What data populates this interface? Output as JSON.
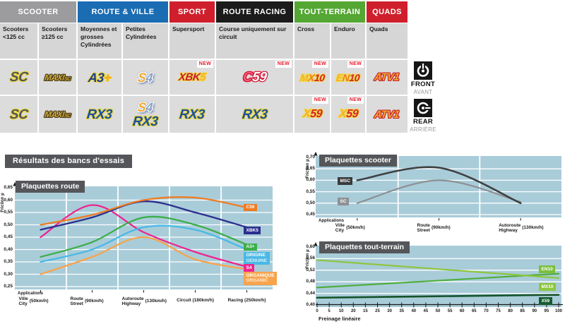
{
  "section_title": "Résultats des bancs d'essais",
  "colors": {
    "banner_bg": "#55565a",
    "plot_bg": "#a9ccd9",
    "grid": "#ffffff",
    "cell_bg": "#dcdcdc",
    "subheader_bg": "#d6d6d6",
    "new_text": "#e8192c",
    "axis": "#1a1a1a"
  },
  "matrix": {
    "new_label": "NEW",
    "header_groups": [
      {
        "label": "SCOOTER",
        "color": "#9c9c9e",
        "cols": [
          0,
          1
        ]
      },
      {
        "label": "ROUTE & VILLE",
        "color": "#1a6cb3",
        "cols": [
          2,
          3
        ]
      },
      {
        "label": "SPORT",
        "color": "#cf1f2c",
        "cols": [
          4
        ]
      },
      {
        "label": "ROUTE RACING",
        "color": "#1b1b1b",
        "cols": [
          5
        ]
      },
      {
        "label": "TOUT-TERRAIN",
        "color": "#54a733",
        "cols": [
          6,
          7
        ]
      },
      {
        "label": "QUADS",
        "color": "#cf1f2c",
        "cols": [
          8
        ]
      }
    ],
    "subheaders": [
      "Scooters <125 cc",
      "Scooters ≥125 cc",
      "Moyennes et grosses Cylindrées",
      "Petites Cylindrées",
      "Supersport",
      "Course uniquement sur circuit",
      "Cross",
      "Enduro",
      "Quads"
    ],
    "rows": [
      {
        "side": "front",
        "cells": [
          {
            "logos": [
              "SC"
            ]
          },
          {
            "logos": [
              "MAXI-SC"
            ]
          },
          {
            "logos": [
              "A3+"
            ]
          },
          {
            "logos": [
              "S4"
            ]
          },
          {
            "logos": [
              "XBK5"
            ],
            "new": true
          },
          {
            "logos": [
              "C59"
            ],
            "new": true
          },
          {
            "logos": [
              "MX10"
            ],
            "new": true
          },
          {
            "logos": [
              "EN10"
            ],
            "new": true
          },
          {
            "logos": [
              "ATV1"
            ]
          }
        ]
      },
      {
        "side": "rear",
        "cells": [
          {
            "logos": [
              "SC"
            ]
          },
          {
            "logos": [
              "MAXI-SC"
            ]
          },
          {
            "logos": [
              "RX3"
            ]
          },
          {
            "logos": [
              "S4",
              "RX3"
            ]
          },
          {
            "logos": [
              "RX3"
            ]
          },
          {
            "logos": [
              "RX3"
            ]
          },
          {
            "logos": [
              "X59"
            ],
            "new": true
          },
          {
            "logos": [
              "X59"
            ],
            "new": true
          },
          {
            "logos": [
              "ATV1"
            ]
          }
        ]
      }
    ],
    "position_labels": [
      {
        "en": "FRONT",
        "fr": "AVANT"
      },
      {
        "en": "REAR",
        "fr": "ARRIÈRE"
      }
    ]
  },
  "logo_styles": {
    "SC": {
      "size": 19,
      "outline": "#ead73a",
      "parts": [
        {
          "t": "SC",
          "c": "#54555a"
        }
      ]
    },
    "MAXI-SC": {
      "size": 12,
      "outline": "#453a14",
      "parts": [
        {
          "t": "MAXI",
          "c": "#d2a93c"
        },
        {
          "t": "SC",
          "c": "#d2a93c",
          "small": true
        }
      ]
    },
    "A3+": {
      "size": 18,
      "outline": "#ead73a",
      "parts": [
        {
          "t": "A3",
          "c": "#1e3c94"
        },
        {
          "t": "+",
          "c": "#f2a62c"
        }
      ]
    },
    "S4": {
      "size": 18,
      "outline": "#ffffff",
      "glow": "#4a6fa5",
      "parts": [
        {
          "t": "S",
          "c": "#f2a62c"
        },
        {
          "t": "4",
          "c": "#8aa2c0"
        }
      ]
    },
    "XBK5": {
      "size": 15,
      "outline": "#f5d84a",
      "parts": [
        {
          "t": "XBK",
          "c": "#c3202c"
        },
        {
          "t": "5",
          "c": "#f2b32e"
        }
      ]
    },
    "C59": {
      "size": 19,
      "outline": "#d20f2f",
      "parts": [
        {
          "t": "C",
          "c": "#f05a75"
        },
        {
          "t": "59",
          "c": "#ffffff"
        }
      ]
    },
    "MX10": {
      "size": 14,
      "outline": "#f5d84a",
      "parts": [
        {
          "t": "M",
          "c": "#f2b32e"
        },
        {
          "t": "X",
          "c": "#ee7d23"
        },
        {
          "t": "10",
          "c": "#d2232a"
        }
      ]
    },
    "EN10": {
      "size": 14,
      "outline": "#f5d84a",
      "parts": [
        {
          "t": "E",
          "c": "#f2b32e"
        },
        {
          "t": "N",
          "c": "#ee7d23"
        },
        {
          "t": "10",
          "c": "#d2232a"
        }
      ]
    },
    "ATV1": {
      "size": 15,
      "outline": "#c3202c",
      "parts": [
        {
          "t": "ATV1",
          "c": "#f2a62c"
        }
      ]
    },
    "RX3": {
      "size": 19,
      "outline": "#ead73a",
      "parts": [
        {
          "t": "RX3",
          "c": "#1d4fa1"
        }
      ]
    },
    "X59": {
      "size": 16,
      "outline": "#f5d84a",
      "parts": [
        {
          "t": "X",
          "c": "#f2b32e"
        },
        {
          "t": "59",
          "c": "#d2232a"
        }
      ]
    }
  },
  "chart_data": [
    {
      "id": "route",
      "type": "line",
      "title": "Plaquettes route",
      "ylabel": "Friction µ",
      "applications_label": "Applications",
      "ylim": [
        0.25,
        0.65
      ],
      "yticks": [
        "0,65",
        "0,60",
        "0,55",
        "0,50",
        "0,45",
        "0,40",
        "0,35",
        "0,30",
        "0,25"
      ],
      "categories": [
        {
          "fr": "Ville",
          "en": "City",
          "speed": "(50km/h)"
        },
        {
          "fr": "Route",
          "en": "Street",
          "speed": "(90km/h)"
        },
        {
          "fr": "Autoroute",
          "en": "Highway",
          "speed": "(130km/h)"
        },
        {
          "fr": "Circuit (180km/h)"
        },
        {
          "fr": "Racing (250km/h)"
        }
      ],
      "series": [
        {
          "name": "C59",
          "color": "#ee7c22",
          "badge_bg": "#ee7c22",
          "badge_lines": [
            "C59"
          ],
          "values": [
            0.5,
            0.54,
            0.6,
            0.61,
            0.57
          ],
          "badge_y": 0.571
        },
        {
          "name": "XBK5",
          "color": "#2b2f8e",
          "badge_bg": "#2b2f8e",
          "badge_lines": [
            "XBK5"
          ],
          "values": [
            0.48,
            0.53,
            0.595,
            0.55,
            0.49
          ],
          "badge_y": 0.478
        },
        {
          "name": "A3+",
          "color": "#3dae49",
          "badge_bg": "#3dae49",
          "badge_lines": [
            "A3+"
          ],
          "values": [
            0.37,
            0.43,
            0.53,
            0.5,
            0.42
          ],
          "badge_y": 0.411
        },
        {
          "name": "ORIGINE GENUINE",
          "color": "#49b9e6",
          "badge_bg": "#49b9e6",
          "badge_lines": [
            "ORIGINE",
            "GENUINE"
          ],
          "values": [
            0.35,
            0.4,
            0.49,
            0.48,
            0.4
          ],
          "badge_y": 0.37
        },
        {
          "name": "S4",
          "color": "#ec268f",
          "badge_bg": "#ec268f",
          "badge_lines": [
            "S4"
          ],
          "values": [
            0.45,
            0.58,
            0.47,
            0.39,
            0.33
          ],
          "badge_y": 0.327
        },
        {
          "name": "ORGANIQUE ORGANIC",
          "color": "#f7a44c",
          "badge_bg": "#f7a44c",
          "badge_lines": [
            "ORGANIQUE",
            "ORGANIC"
          ],
          "values": [
            0.3,
            0.37,
            0.45,
            0.36,
            0.32
          ],
          "badge_y": 0.288
        }
      ]
    },
    {
      "id": "scooter",
      "type": "line",
      "title": "Plaquettes scooter",
      "ylabel": "Friction µ",
      "applications_label": "Applications",
      "ylim": [
        0.45,
        0.7
      ],
      "yticks": [
        "0,70",
        "0,65",
        "0,60",
        "0,55",
        "0,50",
        "0,45"
      ],
      "categories": [
        {
          "fr": "Ville",
          "en": "City",
          "speed": "(50km/h)"
        },
        {
          "fr": "Route",
          "en": "Street",
          "speed": "(90km/h)"
        },
        {
          "fr": "Autoroute",
          "en": "Highway",
          "speed": "(130km/h)"
        }
      ],
      "series": [
        {
          "name": "MSC",
          "color": "#3e4042",
          "badge_bg": "#3a3b3d",
          "badge_lines": [
            "MSC"
          ],
          "values": [
            0.6,
            0.655,
            0.5
          ],
          "badge_y": 0.597,
          "width": 2.6
        },
        {
          "name": "SC",
          "color": "#8d9194",
          "badge_bg": "#8d9194",
          "badge_lines": [
            "SC"
          ],
          "values": [
            0.5,
            0.6,
            0.505
          ],
          "badge_y": 0.508,
          "width": 2.2
        }
      ]
    },
    {
      "id": "terrain",
      "type": "line",
      "title": "Plaquettes tout-terrain",
      "ylabel": "Friction µ",
      "xlabel": "Freinage linéaire",
      "ylim": [
        0.4,
        0.6
      ],
      "xlim": [
        0,
        100
      ],
      "yticks": [
        "0,60",
        "0,56",
        "0,52",
        "0,48",
        "0,44",
        "0,40"
      ],
      "xticks": [
        "0",
        "5",
        "10",
        "20",
        "15",
        "25",
        "30",
        "35",
        "40",
        "45",
        "50",
        "55",
        "60",
        "65",
        "70",
        "75",
        "80",
        "85",
        "90",
        "95",
        "100"
      ],
      "series": [
        {
          "name": "EN10",
          "color": "#8dc63f",
          "badge_bg": "#7cbf3f",
          "badge_lines": [
            "EN10"
          ],
          "values": [
            0.555,
            0.493
          ],
          "badge_y": 0.524,
          "width": 2.2
        },
        {
          "name": "MX10",
          "color": "#4fae3d",
          "badge_bg": "#8dc63f",
          "badge_lines": [
            "MX10"
          ],
          "values": [
            0.46,
            0.508
          ],
          "badge_y": 0.463,
          "width": 2.2
        },
        {
          "name": "X59",
          "color": "#14532a",
          "badge_bg": "#155c2e",
          "badge_lines": [
            "X59"
          ],
          "values": [
            0.425,
            0.435
          ],
          "badge_y": 0.414,
          "width": 2.6
        }
      ]
    }
  ]
}
